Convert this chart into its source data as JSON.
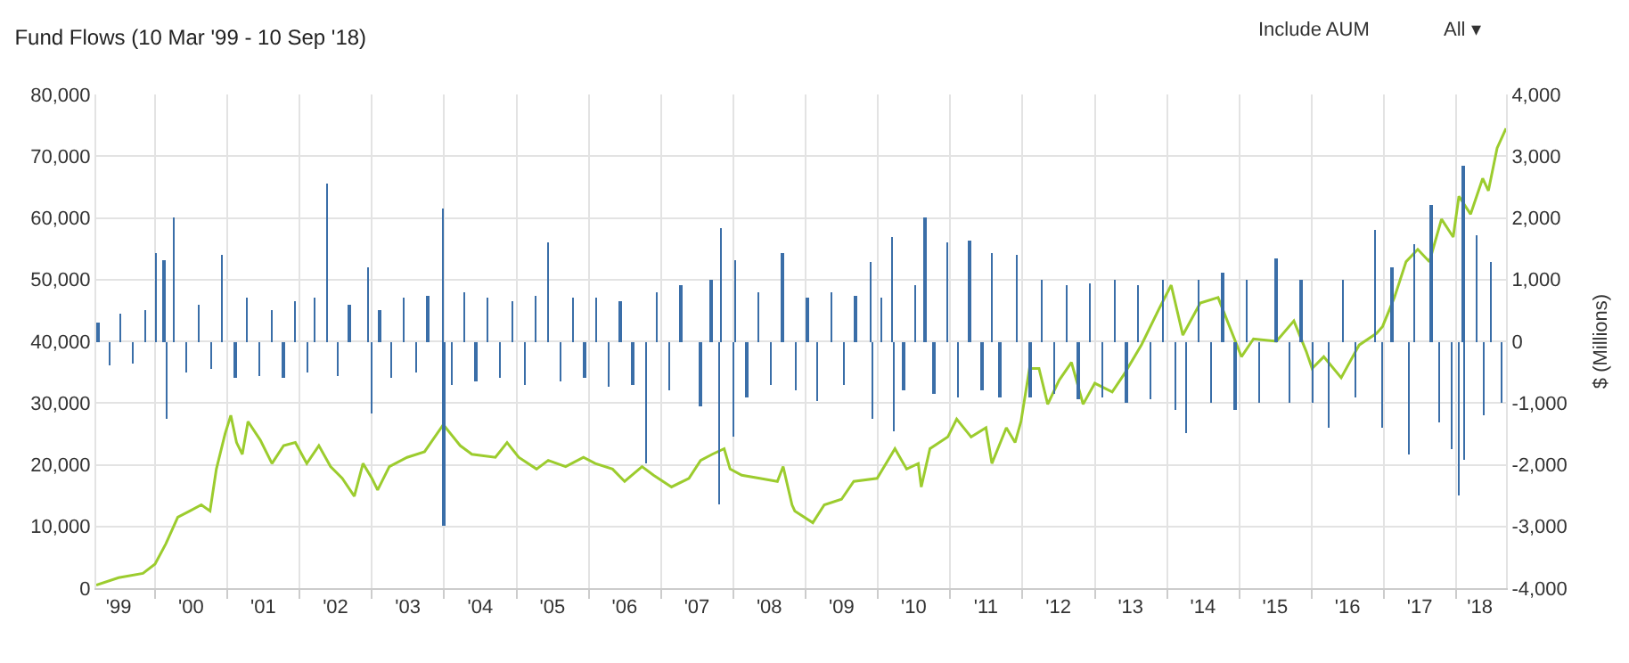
{
  "chart_data": {
    "type": "line",
    "title": "Fund Flows (10 Mar '99 - 10 Sep '18)",
    "y2label": "$ (Millions)",
    "annotations": [
      "Include AUM",
      "All ▾"
    ],
    "xlim": [
      "1999-03-10",
      "2018-09-10"
    ],
    "xticks": [
      {
        "value": "1999-07-01",
        "label": "'99"
      },
      {
        "value": "2000-07-01",
        "label": "'00"
      },
      {
        "value": "2001-07-01",
        "label": "'01"
      },
      {
        "value": "2002-07-01",
        "label": "'02"
      },
      {
        "value": "2003-07-01",
        "label": "'03"
      },
      {
        "value": "2004-07-01",
        "label": "'04"
      },
      {
        "value": "2005-07-01",
        "label": "'05"
      },
      {
        "value": "2006-07-01",
        "label": "'06"
      },
      {
        "value": "2007-07-01",
        "label": "'07"
      },
      {
        "value": "2008-07-01",
        "label": "'08"
      },
      {
        "value": "2009-07-01",
        "label": "'09"
      },
      {
        "value": "2010-07-01",
        "label": "'10"
      },
      {
        "value": "2011-07-01",
        "label": "'11"
      },
      {
        "value": "2012-07-01",
        "label": "'12"
      },
      {
        "value": "2013-07-01",
        "label": "'13"
      },
      {
        "value": "2014-07-01",
        "label": "'14"
      },
      {
        "value": "2015-07-01",
        "label": "'15"
      },
      {
        "value": "2016-07-01",
        "label": "'16"
      },
      {
        "value": "2017-07-01",
        "label": "'17"
      },
      {
        "value": "2018-05-01",
        "label": "'18"
      }
    ],
    "ylim": [
      0,
      80000
    ],
    "yticks": [
      {
        "value": 0,
        "label": "0"
      },
      {
        "value": 10000,
        "label": "10,000"
      },
      {
        "value": 20000,
        "label": "20,000"
      },
      {
        "value": 30000,
        "label": "30,000"
      },
      {
        "value": 40000,
        "label": "40,000"
      },
      {
        "value": 50000,
        "label": "50,000"
      },
      {
        "value": 60000,
        "label": "60,000"
      },
      {
        "value": 70000,
        "label": "70,000"
      },
      {
        "value": 80000,
        "label": "80,000"
      }
    ],
    "y2lim": [
      -4000,
      4000
    ],
    "y2ticks": [
      {
        "value": -4000,
        "label": "-4,000"
      },
      {
        "value": -3000,
        "label": "-3,000"
      },
      {
        "value": -2000,
        "label": "-2,000"
      },
      {
        "value": -1000,
        "label": "-1,000"
      },
      {
        "value": 0,
        "label": "0"
      },
      {
        "value": 1000,
        "label": "1,000"
      },
      {
        "value": 2000,
        "label": "2,000"
      },
      {
        "value": 3000,
        "label": "3,000"
      },
      {
        "value": 4000,
        "label": "4,000"
      }
    ],
    "grid": true,
    "marker": "none",
    "line_style": "solid",
    "series": [
      {
        "type": "bar",
        "axis": "y2",
        "color": "#3a6ea8",
        "x": [
          "1999-03-20",
          "1999-05-15",
          "1999-07-10",
          "1999-09-10",
          "1999-11-10",
          "2000-01-08",
          "2000-02-15",
          "2000-03-02",
          "2000-04-05",
          "2000-06-10",
          "2000-08-10",
          "2000-10-10",
          "2000-12-05",
          "2001-02-10",
          "2001-04-10",
          "2001-06-10",
          "2001-08-10",
          "2001-10-10",
          "2001-12-10",
          "2002-02-10",
          "2002-03-20",
          "2002-05-22",
          "2002-07-10",
          "2002-09-10",
          "2002-12-12",
          "2002-12-28",
          "2003-02-10",
          "2003-04-10",
          "2003-06-10",
          "2003-08-10",
          "2003-10-10",
          "2003-12-25",
          "2003-12-30",
          "2004-02-10",
          "2004-04-10",
          "2004-06-10",
          "2004-08-10",
          "2004-10-10",
          "2004-12-10",
          "2005-02-10",
          "2005-04-10",
          "2005-06-10",
          "2005-08-10",
          "2005-10-10",
          "2005-12-10",
          "2006-02-10",
          "2006-04-10",
          "2006-06-10",
          "2006-08-10",
          "2006-10-20",
          "2006-12-10",
          "2007-02-10",
          "2007-04-10",
          "2007-07-18",
          "2007-09-10",
          "2007-10-20",
          "2007-10-28",
          "2008-01-02",
          "2008-01-08",
          "2008-03-10",
          "2008-05-10",
          "2008-07-10",
          "2008-09-05",
          "2008-11-10",
          "2009-01-10",
          "2009-03-02",
          "2009-05-10",
          "2009-07-10",
          "2009-09-10",
          "2009-11-25",
          "2009-12-02",
          "2010-01-20",
          "2010-03-15",
          "2010-03-20",
          "2010-05-10",
          "2010-07-10",
          "2010-08-28",
          "2010-10-10",
          "2010-12-20",
          "2011-02-10",
          "2011-04-08",
          "2011-06-10",
          "2011-07-30",
          "2011-09-10",
          "2011-12-02",
          "2012-02-10",
          "2012-04-10",
          "2012-06-10",
          "2012-08-10",
          "2012-10-10",
          "2012-12-10",
          "2013-02-10",
          "2013-04-10",
          "2013-06-10",
          "2013-08-10",
          "2013-10-10",
          "2013-12-10",
          "2014-02-10",
          "2014-04-05",
          "2014-06-10",
          "2014-08-10",
          "2014-10-10",
          "2014-12-10",
          "2015-02-10",
          "2015-04-10",
          "2015-07-05",
          "2015-09-10",
          "2015-11-10",
          "2016-01-10",
          "2016-03-28",
          "2016-06-10",
          "2016-08-10",
          "2016-11-15",
          "2016-12-25",
          "2017-02-10",
          "2017-05-05",
          "2017-06-05",
          "2017-08-28",
          "2017-10-10",
          "2017-12-10",
          "2018-01-15",
          "2018-02-06",
          "2018-02-12",
          "2018-04-15",
          "2018-05-20",
          "2018-06-28",
          "2018-08-20"
        ],
        "values": [
          300,
          -400,
          450,
          -350,
          500,
          1440,
          1300,
          -1260,
          2000,
          -500,
          600,
          -450,
          1400,
          -600,
          700,
          -550,
          500,
          -600,
          650,
          -500,
          700,
          2560,
          -550,
          600,
          1200,
          -1160,
          500,
          -600,
          700,
          -500,
          750,
          2160,
          -2990,
          -700,
          800,
          -650,
          700,
          -600,
          650,
          -700,
          750,
          1600,
          -650,
          700,
          -600,
          700,
          -750,
          650,
          -700,
          -1980,
          800,
          -800,
          900,
          -1060,
          1000,
          -2650,
          1820,
          -1550,
          1300,
          -900,
          800,
          -700,
          1440,
          -800,
          700,
          -970,
          800,
          -700,
          750,
          1290,
          -1260,
          700,
          1690,
          -1450,
          -800,
          900,
          2020,
          -850,
          1600,
          -900,
          1630,
          -800,
          1440,
          -900,
          1410,
          -900,
          1000,
          -850,
          900,
          -950,
          950,
          -900,
          1000,
          -1000,
          900,
          -950,
          1000,
          -1100,
          -1490,
          1000,
          -1000,
          1100,
          -1100,
          1000,
          -1000,
          1340,
          -1000,
          1000,
          -1000,
          -1400,
          1000,
          -900,
          1800,
          -1400,
          1200,
          -1830,
          1580,
          2210,
          -1300,
          -1740,
          -2500,
          2840,
          -1920,
          1730,
          -1200,
          1290,
          -1000
        ]
      },
      {
        "color": "#9ccc2e",
        "x": [
          "1999-03-10",
          "1999-07-01",
          "1999-11-01",
          "2000-01-01",
          "2000-02-25",
          "2000-04-25",
          "2000-06-25",
          "2000-08-22",
          "2000-10-05",
          "2000-11-06",
          "2000-12-20",
          "2001-01-18",
          "2001-02-16",
          "2001-03-17",
          "2001-04-15",
          "2001-06-16",
          "2001-08-14",
          "2001-10-12",
          "2001-12-10",
          "2002-02-06",
          "2002-04-08",
          "2002-06-06",
          "2002-08-04",
          "2002-10-04",
          "2002-11-17",
          "2003-01-01",
          "2003-01-30",
          "2003-03-30",
          "2003-06-28",
          "2003-09-24",
          "2003-12-28",
          "2004-03-22",
          "2004-05-20",
          "2004-09-16",
          "2004-11-14",
          "2005-01-12",
          "2005-04-12",
          "2005-06-10",
          "2005-09-06",
          "2005-12-05",
          "2006-02-03",
          "2006-05-01",
          "2006-07-01",
          "2006-09-27",
          "2006-11-24",
          "2007-02-23",
          "2007-05-22",
          "2007-07-20",
          "2007-09-17",
          "2007-11-16",
          "2007-12-16",
          "2008-02-13",
          "2008-05-14",
          "2008-08-11",
          "2008-09-09",
          "2008-10-24",
          "2008-11-07",
          "2009-02-06",
          "2009-04-05",
          "2009-07-01",
          "2009-09-01",
          "2009-12-28",
          "2010-03-28",
          "2010-05-26",
          "2010-07-24",
          "2010-08-08",
          "2010-09-21",
          "2010-12-20",
          "2011-02-03",
          "2011-04-17",
          "2011-07-01",
          "2011-07-31",
          "2011-10-12",
          "2011-11-25",
          "2011-12-25",
          "2012-02-06",
          "2012-03-25",
          "2012-05-08",
          "2012-07-05",
          "2012-09-05",
          "2012-11-03",
          "2013-01-01",
          "2013-03-30",
          "2013-05-30",
          "2013-08-26",
          "2013-11-22",
          "2014-01-22",
          "2014-03-22",
          "2014-06-18",
          "2014-09-16",
          "2015-01-12",
          "2015-03-14",
          "2015-07-08",
          "2015-10-04",
          "2015-12-05",
          "2016-01-04",
          "2016-03-03",
          "2016-05-30",
          "2016-08-29",
          "2016-11-25",
          "2016-12-25",
          "2017-02-23",
          "2017-04-23",
          "2017-06-21",
          "2017-08-19",
          "2017-10-19",
          "2017-12-17",
          "2018-01-15",
          "2018-03-15",
          "2018-05-15",
          "2018-06-13",
          "2018-07-27",
          "2018-09-10"
        ],
        "values": [
          500,
          1700,
          2400,
          3900,
          7200,
          11500,
          12500,
          13500,
          12500,
          19300,
          25000,
          28000,
          23600,
          21700,
          27000,
          24000,
          20200,
          23100,
          23600,
          20200,
          23100,
          19700,
          17800,
          14900,
          20200,
          17800,
          15900,
          19700,
          21200,
          22100,
          26500,
          23100,
          21700,
          21200,
          23600,
          21200,
          19300,
          20700,
          19700,
          21200,
          20200,
          19300,
          17300,
          19700,
          18300,
          16400,
          17800,
          20700,
          21700,
          22600,
          19300,
          18300,
          17800,
          17300,
          19700,
          13500,
          12500,
          10600,
          13500,
          14400,
          17300,
          17800,
          22600,
          19300,
          20200,
          16400,
          22600,
          24500,
          27400,
          24500,
          26000,
          20200,
          26000,
          23600,
          27000,
          35600,
          35600,
          29800,
          33700,
          36600,
          29800,
          33200,
          31800,
          34700,
          39500,
          45300,
          49100,
          41000,
          46200,
          47100,
          37500,
          40400,
          40000,
          43300,
          38400,
          35600,
          37500,
          34100,
          39400,
          41300,
          42400,
          47100,
          52900,
          54900,
          52900,
          59800,
          56900,
          63500,
          60600,
          66400,
          64400,
          71300,
          74500
        ]
      }
    ]
  }
}
